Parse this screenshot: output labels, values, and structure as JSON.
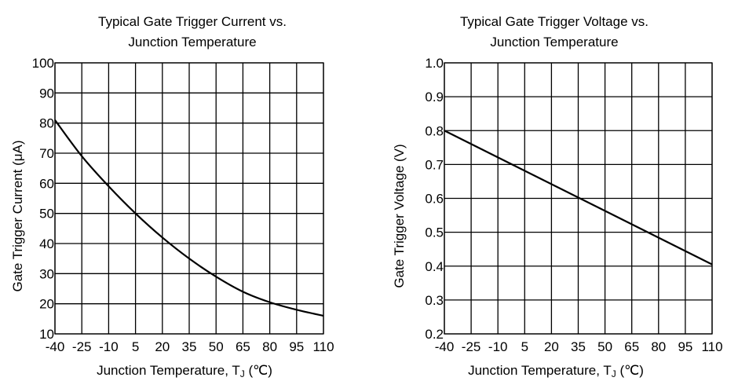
{
  "chart_data": [
    {
      "type": "line",
      "title": [
        "Typical Gate Trigger Current vs.",
        "Junction Temperature"
      ],
      "xlabel": "Junction Temperature, T",
      "xlabel_sub": "J",
      "xlabel_unit": " (℃)",
      "ylabel": "Gate Trigger Current (μA)",
      "x_ticks": [
        -40,
        -25,
        -10,
        5,
        20,
        35,
        50,
        65,
        80,
        95,
        110
      ],
      "x_tick_labels": [
        "-40",
        "-25",
        "-10",
        "5",
        "20",
        "35",
        "50",
        "65",
        "80",
        "95",
        "110"
      ],
      "y_ticks": [
        10,
        20,
        30,
        40,
        50,
        60,
        70,
        80,
        90,
        100
      ],
      "y_tick_labels": [
        "10",
        "20",
        "30",
        "40",
        "50",
        "60",
        "70",
        "80",
        "90",
        "100"
      ],
      "xlim": [
        -40,
        110
      ],
      "ylim": [
        10,
        100
      ],
      "grid": true,
      "series": [
        {
          "name": "Gate Trigger Current",
          "x": [
            -40,
            -25,
            -10,
            5,
            20,
            35,
            50,
            65,
            80,
            95,
            110
          ],
          "values": [
            81,
            69,
            59,
            50,
            42,
            35,
            29,
            24,
            20.5,
            18,
            16
          ]
        }
      ]
    },
    {
      "type": "line",
      "title": [
        "Typical Gate Trigger Voltage vs.",
        "Junction Temperature"
      ],
      "xlabel": "Junction Temperature, T",
      "xlabel_sub": "J",
      "xlabel_unit": " (℃)",
      "ylabel": "Gate Trigger Voltage (V)",
      "x_ticks": [
        -40,
        -25,
        -10,
        5,
        20,
        35,
        50,
        65,
        80,
        95,
        110
      ],
      "x_tick_labels": [
        "-40",
        "-25",
        "-10",
        "5",
        "20",
        "35",
        "50",
        "65",
        "80",
        "95",
        "110"
      ],
      "y_ticks": [
        0.2,
        0.3,
        0.4,
        0.5,
        0.6,
        0.7,
        0.8,
        0.9,
        1.0
      ],
      "y_tick_labels": [
        "0.2",
        "0.3",
        "0.4",
        "0.5",
        "0.6",
        "0.7",
        "0.8",
        "0.9",
        "1.0"
      ],
      "xlim": [
        -40,
        110
      ],
      "ylim": [
        0.2,
        1.0
      ],
      "grid": true,
      "series": [
        {
          "name": "Gate Trigger Voltage",
          "x": [
            -40,
            110
          ],
          "values": [
            0.8,
            0.405
          ]
        }
      ]
    }
  ]
}
